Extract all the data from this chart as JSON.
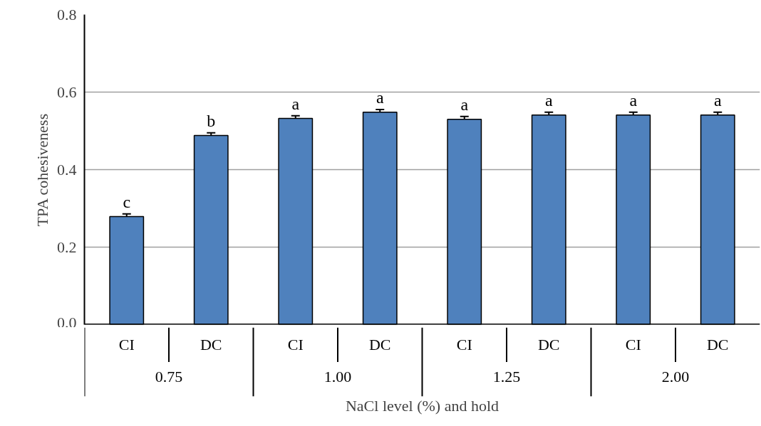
{
  "chart_data": {
    "type": "bar",
    "ylabel": "TPA cohesiveness",
    "xlabel": "NaCl level (%) and hold",
    "categories": [
      "CI",
      "DC",
      "CI",
      "DC",
      "CI",
      "DC",
      "CI",
      "DC"
    ],
    "annotations": [
      "0.75",
      "1.00",
      "1.25",
      "2.00"
    ],
    "values": [
      0.279,
      0.488,
      0.532,
      0.548,
      0.53,
      0.541,
      0.541,
      0.541
    ],
    "errors": [
      0.007,
      0.007,
      0.007,
      0.007,
      0.007,
      0.007,
      0.007,
      0.007
    ],
    "value_labels": [
      "c",
      "b",
      "a",
      "a",
      "a",
      "a",
      "a",
      "a"
    ],
    "color": "#4f81bd",
    "ylim": [
      0,
      0.8
    ],
    "yticks": [
      {
        "value": 0,
        "label": "0.0"
      },
      {
        "value": 0.2,
        "label": "0.2"
      },
      {
        "value": 0.4,
        "label": "0.4"
      },
      {
        "value": 0.6,
        "label": "0.6"
      },
      {
        "value": 0.8,
        "label": "0.8"
      }
    ],
    "grid": "y"
  }
}
